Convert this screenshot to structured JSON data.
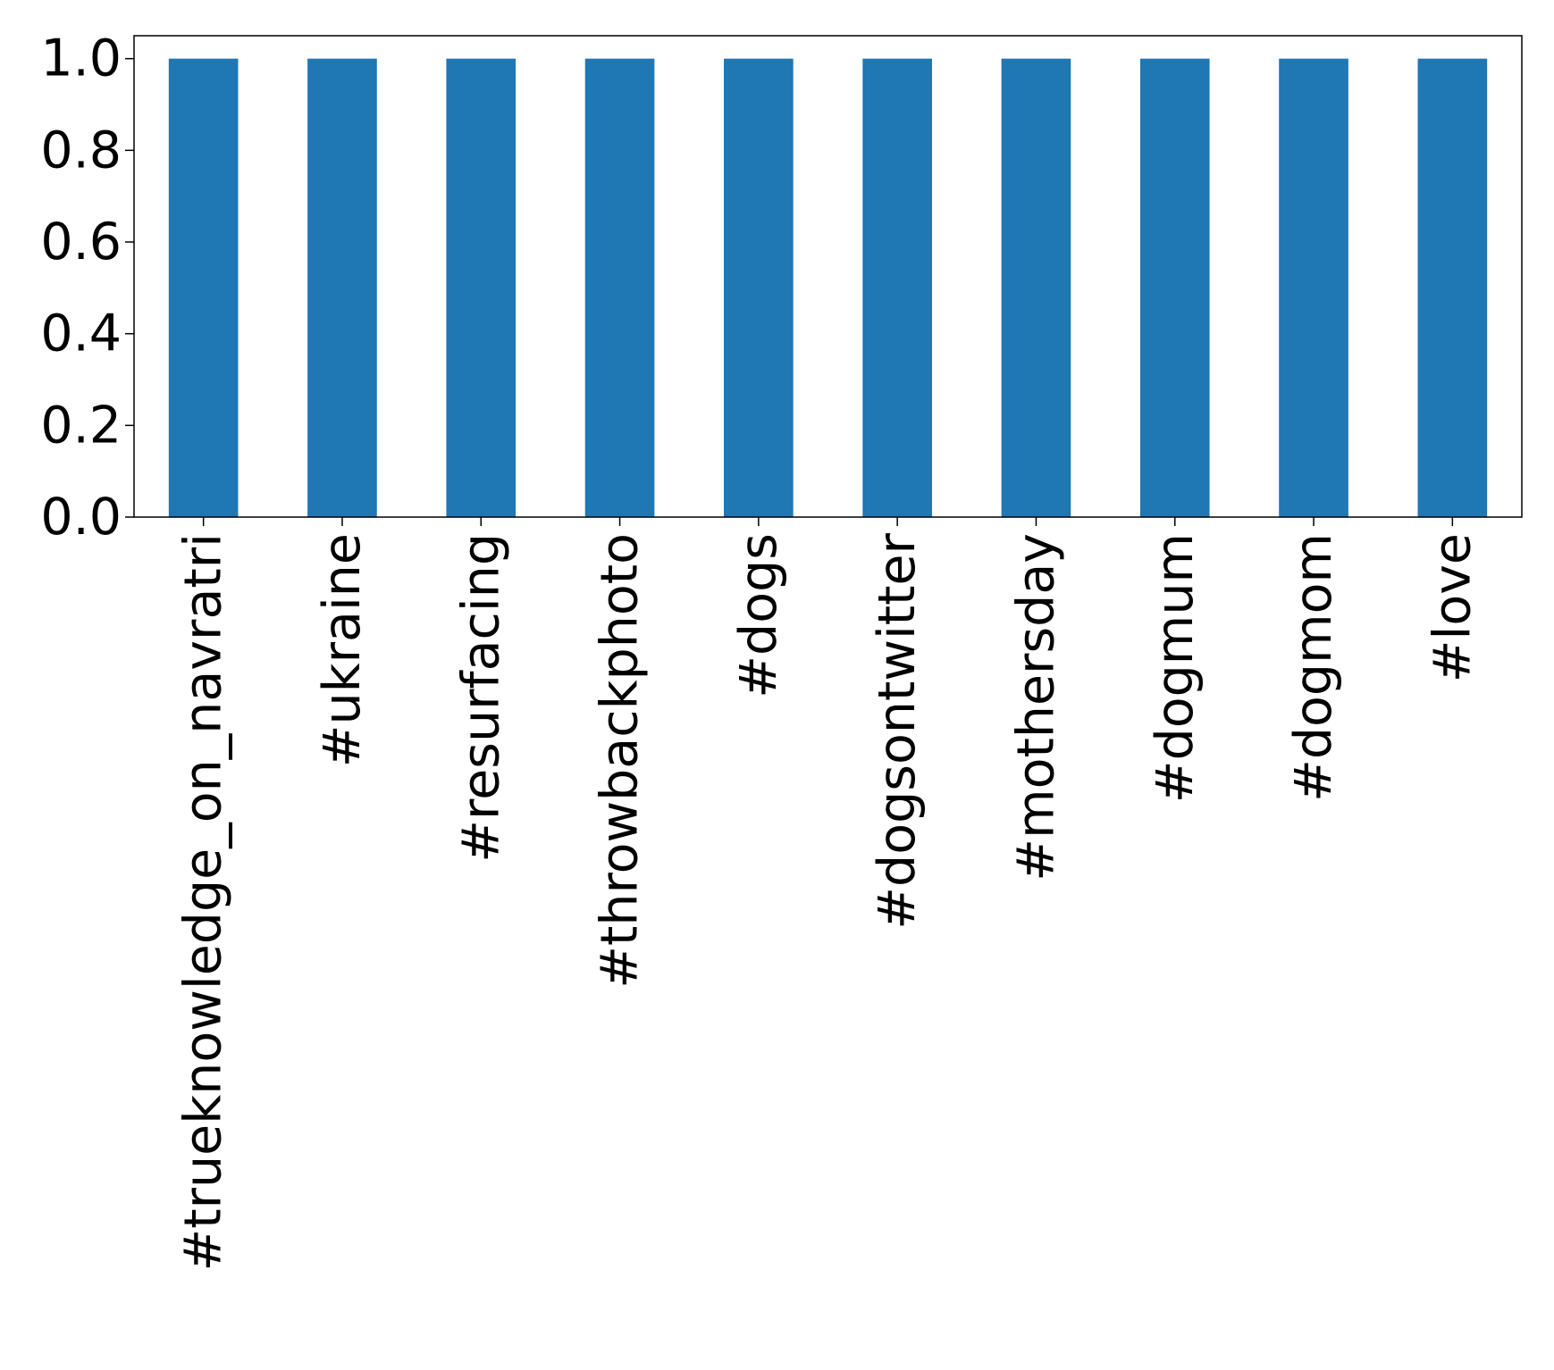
{
  "chart_data": {
    "type": "bar",
    "title": "",
    "xlabel": "",
    "ylabel": "",
    "categories": [
      "#trueknowledge_on_navratri",
      "#ukraine",
      "#resurfacing",
      "#throwbackphoto",
      "#dogs",
      "#dogsontwitter",
      "#mothersday",
      "#dogmum",
      "#dogmom",
      "#love"
    ],
    "values": [
      1.0,
      1.0,
      1.0,
      1.0,
      1.0,
      1.0,
      1.0,
      1.0,
      1.0,
      1.0
    ],
    "ylim": [
      0.0,
      1.05
    ],
    "yticks": [
      0.0,
      0.2,
      0.4,
      0.6,
      0.8,
      1.0
    ],
    "ytick_labels": [
      "0.0",
      "0.2",
      "0.4",
      "0.6",
      "0.8",
      "1.0"
    ],
    "bar_color": "#1f77b4",
    "grid": false,
    "legend": "none",
    "x_label_rotation": "vertical"
  }
}
